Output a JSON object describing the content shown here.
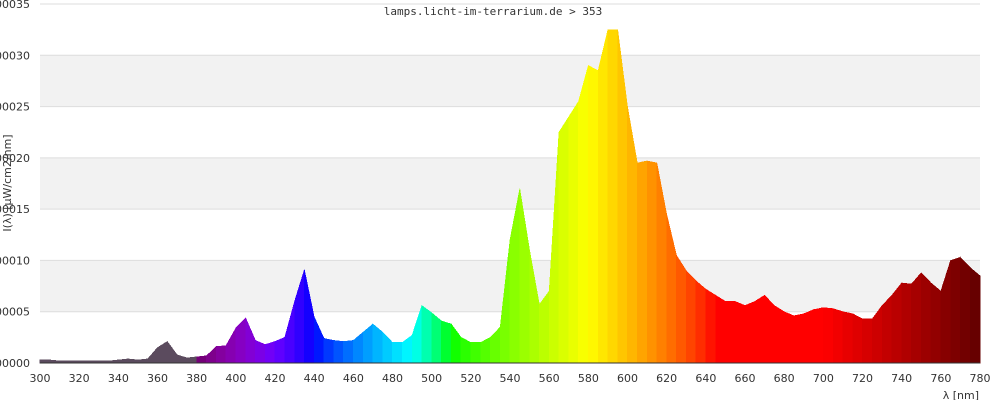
{
  "chart_data": {
    "type": "area",
    "title": "lamps.licht-im-terrarium.de > 353",
    "xlabel": "λ [nm]",
    "ylabel": "I(λ) [µW/cm2/nm]",
    "xlim": [
      300,
      780
    ],
    "ylim": [
      0,
      0.00035
    ],
    "x_ticks": [
      "300",
      "320",
      "340",
      "360",
      "380",
      "400",
      "420",
      "440",
      "460",
      "480",
      "500",
      "520",
      "540",
      "560",
      "580",
      "600",
      "620",
      "640",
      "660",
      "680",
      "700",
      "720",
      "740",
      "760",
      "780"
    ],
    "y_ticks": [
      "00000",
      "00005",
      "00010",
      "00015",
      "00020",
      "00025",
      "00030",
      "00035"
    ],
    "x": [
      300,
      305,
      310,
      315,
      320,
      325,
      330,
      335,
      340,
      345,
      350,
      355,
      360,
      365,
      370,
      375,
      380,
      385,
      390,
      395,
      400,
      405,
      410,
      415,
      420,
      425,
      430,
      435,
      440,
      445,
      450,
      455,
      460,
      465,
      470,
      475,
      480,
      485,
      490,
      495,
      500,
      505,
      510,
      515,
      520,
      525,
      530,
      535,
      540,
      545,
      550,
      555,
      560,
      565,
      570,
      575,
      580,
      585,
      590,
      595,
      600,
      605,
      610,
      615,
      620,
      625,
      630,
      635,
      640,
      645,
      650,
      655,
      660,
      665,
      670,
      675,
      680,
      685,
      690,
      695,
      700,
      705,
      710,
      715,
      720,
      725,
      730,
      735,
      740,
      745,
      750,
      755,
      760,
      765,
      770,
      775,
      780
    ],
    "y": [
      3e-06,
      3e-06,
      2e-06,
      2e-06,
      2e-06,
      2e-06,
      2e-06,
      2e-06,
      3e-06,
      4e-06,
      3e-06,
      4e-06,
      1.5e-05,
      2.1e-05,
      8e-06,
      5e-06,
      6e-06,
      7e-06,
      1.6e-05,
      1.7e-05,
      3.4e-05,
      4.4e-05,
      2.2e-05,
      1.8e-05,
      2.1e-05,
      2.5e-05,
      6e-05,
      9.1e-05,
      4.5e-05,
      2.4e-05,
      2.2e-05,
      2.1e-05,
      2.2e-05,
      3e-05,
      3.8e-05,
      3e-05,
      2e-05,
      2e-05,
      2.7e-05,
      5.6e-05,
      4.9e-05,
      4.1e-05,
      3.8e-05,
      2.5e-05,
      2e-05,
      2e-05,
      2.5e-05,
      3.5e-05,
      0.00012,
      0.00017,
      0.00011,
      5.7e-05,
      7e-05,
      0.000225,
      0.00024,
      0.000255,
      0.00029,
      0.000285,
      0.000325,
      0.000325,
      0.00025,
      0.000195,
      0.000197,
      0.000195,
      0.000145,
      0.000105,
      9e-05,
      8e-05,
      7.2e-05,
      6.6e-05,
      6e-05,
      6e-05,
      5.6e-05,
      6e-05,
      6.6e-05,
      5.6e-05,
      5e-05,
      4.6e-05,
      4.8e-05,
      5.2e-05,
      5.4e-05,
      5.3e-05,
      5e-05,
      4.8e-05,
      4.3e-05,
      4.3e-05,
      5.6e-05,
      6.6e-05,
      7.8e-05,
      7.7e-05,
      8.8e-05,
      7.8e-05,
      7e-05,
      0.0001,
      0.000103,
      9.3e-05,
      8.5e-05
    ],
    "grid": true,
    "legend": "none"
  }
}
